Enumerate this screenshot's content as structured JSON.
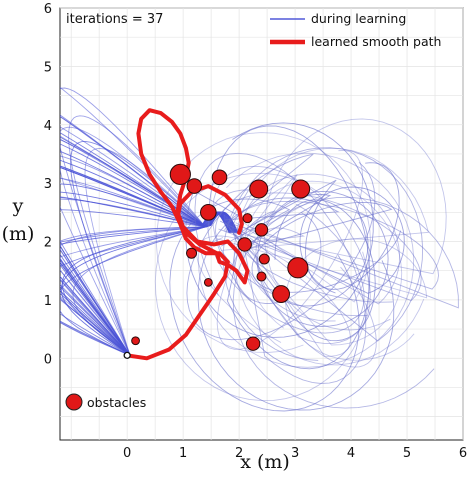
{
  "chart_data": {
    "type": "line",
    "title": "",
    "annotation": "iterations = 37",
    "xlabel": "x (m)",
    "ylabel": "y (m)",
    "xlim": [
      -1.2,
      6
    ],
    "ylim": [
      -1.4,
      6
    ],
    "xticks": [
      "0",
      "1",
      "2",
      "3",
      "4",
      "5",
      "6"
    ],
    "yticks": [
      "0",
      "1",
      "2",
      "3",
      "4",
      "5",
      "6"
    ],
    "grid": true,
    "legend": {
      "placement": "top-right",
      "entries": [
        {
          "label": "during learning",
          "color": "#5058d8"
        },
        {
          "label": "learned smooth path",
          "color": "#e81c1c"
        }
      ]
    },
    "obstacle_legend": {
      "label": "obstacles",
      "placement": "bottom-left",
      "color": "#e01818"
    },
    "start_marker": {
      "x": 0.0,
      "y": 0.05
    },
    "obstacles": [
      {
        "x": 0.95,
        "y": 3.15,
        "r": 0.18
      },
      {
        "x": 1.2,
        "y": 2.95,
        "r": 0.13
      },
      {
        "x": 1.45,
        "y": 2.5,
        "r": 0.14
      },
      {
        "x": 1.65,
        "y": 3.1,
        "r": 0.13
      },
      {
        "x": 2.35,
        "y": 2.9,
        "r": 0.16
      },
      {
        "x": 3.1,
        "y": 2.9,
        "r": 0.16
      },
      {
        "x": 2.15,
        "y": 2.4,
        "r": 0.08
      },
      {
        "x": 2.4,
        "y": 2.2,
        "r": 0.11
      },
      {
        "x": 2.1,
        "y": 1.95,
        "r": 0.12
      },
      {
        "x": 2.45,
        "y": 1.7,
        "r": 0.09
      },
      {
        "x": 3.05,
        "y": 1.55,
        "r": 0.18
      },
      {
        "x": 1.15,
        "y": 1.8,
        "r": 0.09
      },
      {
        "x": 1.45,
        "y": 1.3,
        "r": 0.07
      },
      {
        "x": 2.4,
        "y": 1.4,
        "r": 0.08
      },
      {
        "x": 2.75,
        "y": 1.1,
        "r": 0.15
      },
      {
        "x": 0.15,
        "y": 0.3,
        "r": 0.07
      },
      {
        "x": 2.25,
        "y": 0.25,
        "r": 0.12
      }
    ],
    "series": [
      {
        "name": "learned smooth path",
        "color": "#e81c1c",
        "x": [
          0.0,
          0.35,
          0.75,
          1.05,
          1.3,
          1.55,
          1.75,
          1.8,
          1.65,
          1.4,
          1.2,
          1.05,
          0.95,
          0.8,
          0.6,
          0.4,
          0.25,
          0.2,
          0.25,
          0.4,
          0.6,
          0.8,
          0.95,
          1.05,
          1.1,
          1.05,
          0.95,
          0.9,
          1.0,
          1.25,
          1.55,
          1.8,
          2.0,
          2.15,
          2.1,
          1.95,
          1.8,
          1.65,
          1.6,
          1.5,
          1.3,
          1.05,
          0.9,
          0.95,
          1.15,
          1.45,
          1.75,
          2.0,
          2.05,
          2.0
        ],
        "y": [
          0.05,
          0.0,
          0.15,
          0.4,
          0.75,
          1.1,
          1.4,
          1.65,
          1.8,
          1.8,
          1.9,
          2.05,
          2.3,
          2.6,
          2.85,
          3.15,
          3.5,
          3.85,
          4.1,
          4.25,
          4.2,
          4.05,
          3.85,
          3.6,
          3.35,
          3.1,
          2.8,
          2.5,
          2.25,
          2.0,
          1.95,
          2.0,
          1.8,
          1.5,
          1.3,
          1.5,
          1.6,
          1.65,
          1.8,
          1.85,
          1.95,
          2.15,
          2.4,
          2.65,
          2.85,
          2.95,
          2.8,
          2.55,
          2.3,
          2.15
        ]
      }
    ]
  }
}
